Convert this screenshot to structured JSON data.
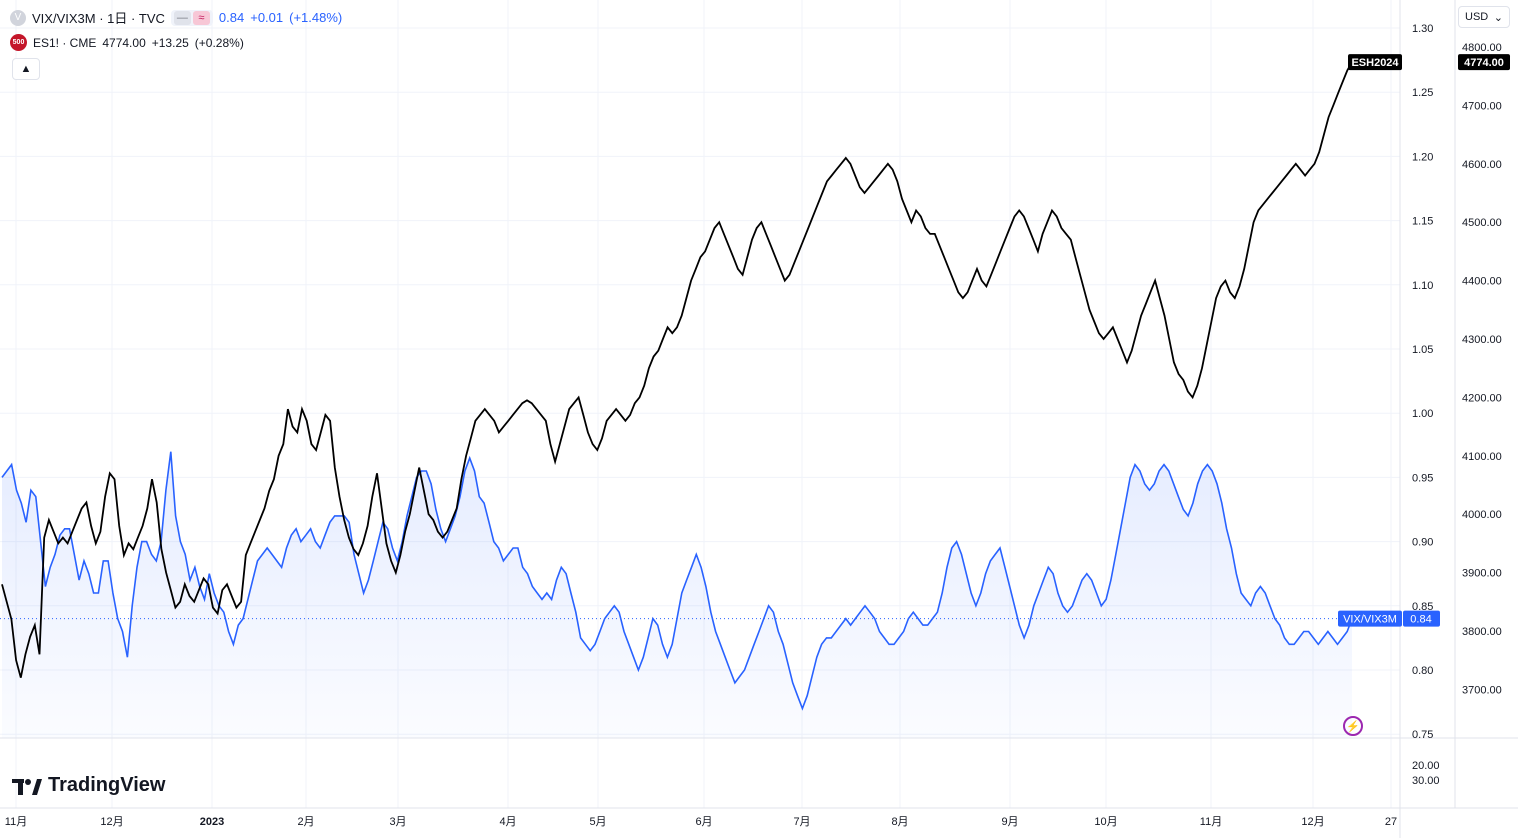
{
  "legend": {
    "main_symbol": "VIX/VIX3M · 1日 · TVC",
    "main_value": "0.84",
    "main_change": "+0.01",
    "main_change_pct": "(+1.48%)",
    "compare_symbol": "ES1! · CME",
    "compare_value": "4774.00",
    "compare_change": "+13.25",
    "compare_change_pct": "(+0.28%)",
    "compare_icon_text": "500"
  },
  "currency_selector": "USD",
  "logo_text": "TradingView",
  "colors": {
    "ratio_line": "#2962ff",
    "es_line": "#000000",
    "grid": "#f0f3fa",
    "axis_text": "#131722"
  },
  "chart_data": {
    "type": "line",
    "x_labels": [
      "11月",
      "12月",
      "2023",
      "2月",
      "3月",
      "4月",
      "5月",
      "6月",
      "7月",
      "8月",
      "9月",
      "10月",
      "11月",
      "12月",
      "27"
    ],
    "left_axis": {
      "ticks": [
        "1.30",
        "1.25",
        "1.20",
        "1.15",
        "1.10",
        "1.05",
        "1.00",
        "0.95",
        "0.90",
        "0.85",
        "0.80",
        "0.75"
      ]
    },
    "right_axis": {
      "ticks": [
        "4800.00",
        "4700.00",
        "4600.00",
        "4500.00",
        "4400.00",
        "4300.00",
        "4200.00",
        "4100.00",
        "4000.00",
        "3900.00",
        "3800.00",
        "3700.00"
      ]
    },
    "volume_axis": {
      "ticks": [
        "20.00",
        "30.00"
      ]
    },
    "series": [
      {
        "name": "VIX/VIX3M",
        "axis": "left",
        "last_label": "VIX/VIX3M",
        "last_value_label": "0.84",
        "values": [
          0.95,
          0.955,
          0.96,
          0.94,
          0.93,
          0.915,
          0.94,
          0.935,
          0.9,
          0.865,
          0.88,
          0.89,
          0.905,
          0.91,
          0.91,
          0.89,
          0.87,
          0.885,
          0.875,
          0.86,
          0.86,
          0.885,
          0.885,
          0.86,
          0.84,
          0.83,
          0.81,
          0.85,
          0.88,
          0.9,
          0.9,
          0.89,
          0.885,
          0.9,
          0.94,
          0.97,
          0.92,
          0.9,
          0.89,
          0.87,
          0.88,
          0.865,
          0.855,
          0.875,
          0.86,
          0.85,
          0.845,
          0.83,
          0.82,
          0.835,
          0.84,
          0.855,
          0.87,
          0.885,
          0.89,
          0.895,
          0.89,
          0.885,
          0.88,
          0.895,
          0.905,
          0.91,
          0.9,
          0.905,
          0.91,
          0.9,
          0.895,
          0.905,
          0.915,
          0.92,
          0.92,
          0.92,
          0.915,
          0.89,
          0.875,
          0.86,
          0.87,
          0.885,
          0.9,
          0.915,
          0.91,
          0.895,
          0.885,
          0.9,
          0.92,
          0.935,
          0.95,
          0.955,
          0.955,
          0.945,
          0.925,
          0.91,
          0.9,
          0.91,
          0.92,
          0.935,
          0.955,
          0.965,
          0.955,
          0.935,
          0.93,
          0.915,
          0.9,
          0.895,
          0.885,
          0.89,
          0.895,
          0.895,
          0.88,
          0.875,
          0.865,
          0.86,
          0.855,
          0.86,
          0.855,
          0.87,
          0.88,
          0.875,
          0.86,
          0.845,
          0.825,
          0.82,
          0.815,
          0.82,
          0.83,
          0.84,
          0.845,
          0.85,
          0.845,
          0.83,
          0.82,
          0.81,
          0.8,
          0.81,
          0.825,
          0.84,
          0.835,
          0.82,
          0.81,
          0.82,
          0.84,
          0.86,
          0.87,
          0.88,
          0.89,
          0.88,
          0.865,
          0.845,
          0.83,
          0.82,
          0.81,
          0.8,
          0.79,
          0.795,
          0.8,
          0.81,
          0.82,
          0.83,
          0.84,
          0.85,
          0.845,
          0.83,
          0.82,
          0.805,
          0.79,
          0.78,
          0.77,
          0.78,
          0.795,
          0.81,
          0.82,
          0.825,
          0.825,
          0.83,
          0.835,
          0.84,
          0.835,
          0.84,
          0.845,
          0.85,
          0.845,
          0.84,
          0.83,
          0.825,
          0.82,
          0.82,
          0.825,
          0.83,
          0.84,
          0.845,
          0.84,
          0.835,
          0.835,
          0.84,
          0.845,
          0.86,
          0.88,
          0.895,
          0.9,
          0.89,
          0.875,
          0.86,
          0.85,
          0.86,
          0.875,
          0.885,
          0.89,
          0.895,
          0.88,
          0.865,
          0.85,
          0.835,
          0.825,
          0.835,
          0.85,
          0.86,
          0.87,
          0.88,
          0.875,
          0.86,
          0.85,
          0.845,
          0.85,
          0.86,
          0.87,
          0.875,
          0.87,
          0.86,
          0.85,
          0.855,
          0.87,
          0.89,
          0.91,
          0.93,
          0.95,
          0.96,
          0.955,
          0.945,
          0.94,
          0.945,
          0.955,
          0.96,
          0.955,
          0.945,
          0.935,
          0.925,
          0.92,
          0.93,
          0.945,
          0.955,
          0.96,
          0.955,
          0.945,
          0.93,
          0.91,
          0.895,
          0.875,
          0.86,
          0.855,
          0.85,
          0.86,
          0.865,
          0.86,
          0.85,
          0.84,
          0.835,
          0.825,
          0.82,
          0.82,
          0.825,
          0.83,
          0.83,
          0.825,
          0.82,
          0.825,
          0.83,
          0.825,
          0.82,
          0.825,
          0.83,
          0.84
        ]
      },
      {
        "name": "ES1!",
        "axis": "right",
        "last_label": "ESH2024",
        "last_value_label": "4774.00",
        "values": [
          3880,
          3850,
          3820,
          3750,
          3720,
          3760,
          3790,
          3810,
          3760,
          3960,
          3990,
          3970,
          3950,
          3960,
          3950,
          3970,
          3990,
          4010,
          4020,
          3980,
          3950,
          3970,
          4030,
          4070,
          4060,
          3980,
          3930,
          3950,
          3940,
          3960,
          3980,
          4010,
          4060,
          4020,
          3940,
          3900,
          3870,
          3840,
          3850,
          3880,
          3860,
          3850,
          3870,
          3890,
          3880,
          3840,
          3830,
          3870,
          3880,
          3860,
          3840,
          3850,
          3930,
          3950,
          3970,
          3990,
          4010,
          4040,
          4060,
          4100,
          4120,
          4180,
          4150,
          4140,
          4180,
          4160,
          4120,
          4110,
          4140,
          4170,
          4160,
          4080,
          4030,
          3990,
          3960,
          3940,
          3930,
          3950,
          3980,
          4030,
          4070,
          4010,
          3950,
          3920,
          3900,
          3930,
          3970,
          4000,
          4040,
          4080,
          4040,
          4000,
          3990,
          3970,
          3960,
          3970,
          3990,
          4010,
          4060,
          4100,
          4130,
          4160,
          4170,
          4180,
          4170,
          4160,
          4140,
          4150,
          4160,
          4170,
          4180,
          4190,
          4195,
          4190,
          4180,
          4170,
          4160,
          4120,
          4090,
          4120,
          4150,
          4180,
          4190,
          4200,
          4170,
          4140,
          4120,
          4110,
          4130,
          4160,
          4170,
          4180,
          4170,
          4160,
          4170,
          4190,
          4200,
          4220,
          4250,
          4270,
          4280,
          4300,
          4320,
          4310,
          4320,
          4340,
          4370,
          4400,
          4420,
          4440,
          4450,
          4470,
          4490,
          4500,
          4480,
          4460,
          4440,
          4420,
          4410,
          4440,
          4470,
          4490,
          4500,
          4480,
          4460,
          4440,
          4420,
          4400,
          4410,
          4430,
          4450,
          4470,
          4490,
          4510,
          4530,
          4550,
          4570,
          4580,
          4590,
          4600,
          4610,
          4600,
          4580,
          4560,
          4550,
          4560,
          4570,
          4580,
          4590,
          4600,
          4590,
          4570,
          4540,
          4520,
          4500,
          4520,
          4510,
          4490,
          4480,
          4480,
          4460,
          4440,
          4420,
          4400,
          4380,
          4370,
          4380,
          4400,
          4420,
          4400,
          4390,
          4410,
          4430,
          4450,
          4470,
          4490,
          4510,
          4520,
          4510,
          4490,
          4470,
          4450,
          4480,
          4500,
          4520,
          4510,
          4490,
          4480,
          4470,
          4440,
          4410,
          4380,
          4350,
          4330,
          4310,
          4300,
          4310,
          4320,
          4300,
          4280,
          4260,
          4280,
          4310,
          4340,
          4360,
          4380,
          4400,
          4370,
          4340,
          4300,
          4260,
          4240,
          4230,
          4210,
          4200,
          4220,
          4250,
          4290,
          4330,
          4370,
          4390,
          4400,
          4380,
          4370,
          4390,
          4420,
          4460,
          4500,
          4520,
          4530,
          4540,
          4550,
          4560,
          4570,
          4580,
          4590,
          4600,
          4590,
          4580,
          4590,
          4600,
          4620,
          4650,
          4680,
          4700,
          4720,
          4740,
          4760,
          4774
        ]
      }
    ]
  }
}
